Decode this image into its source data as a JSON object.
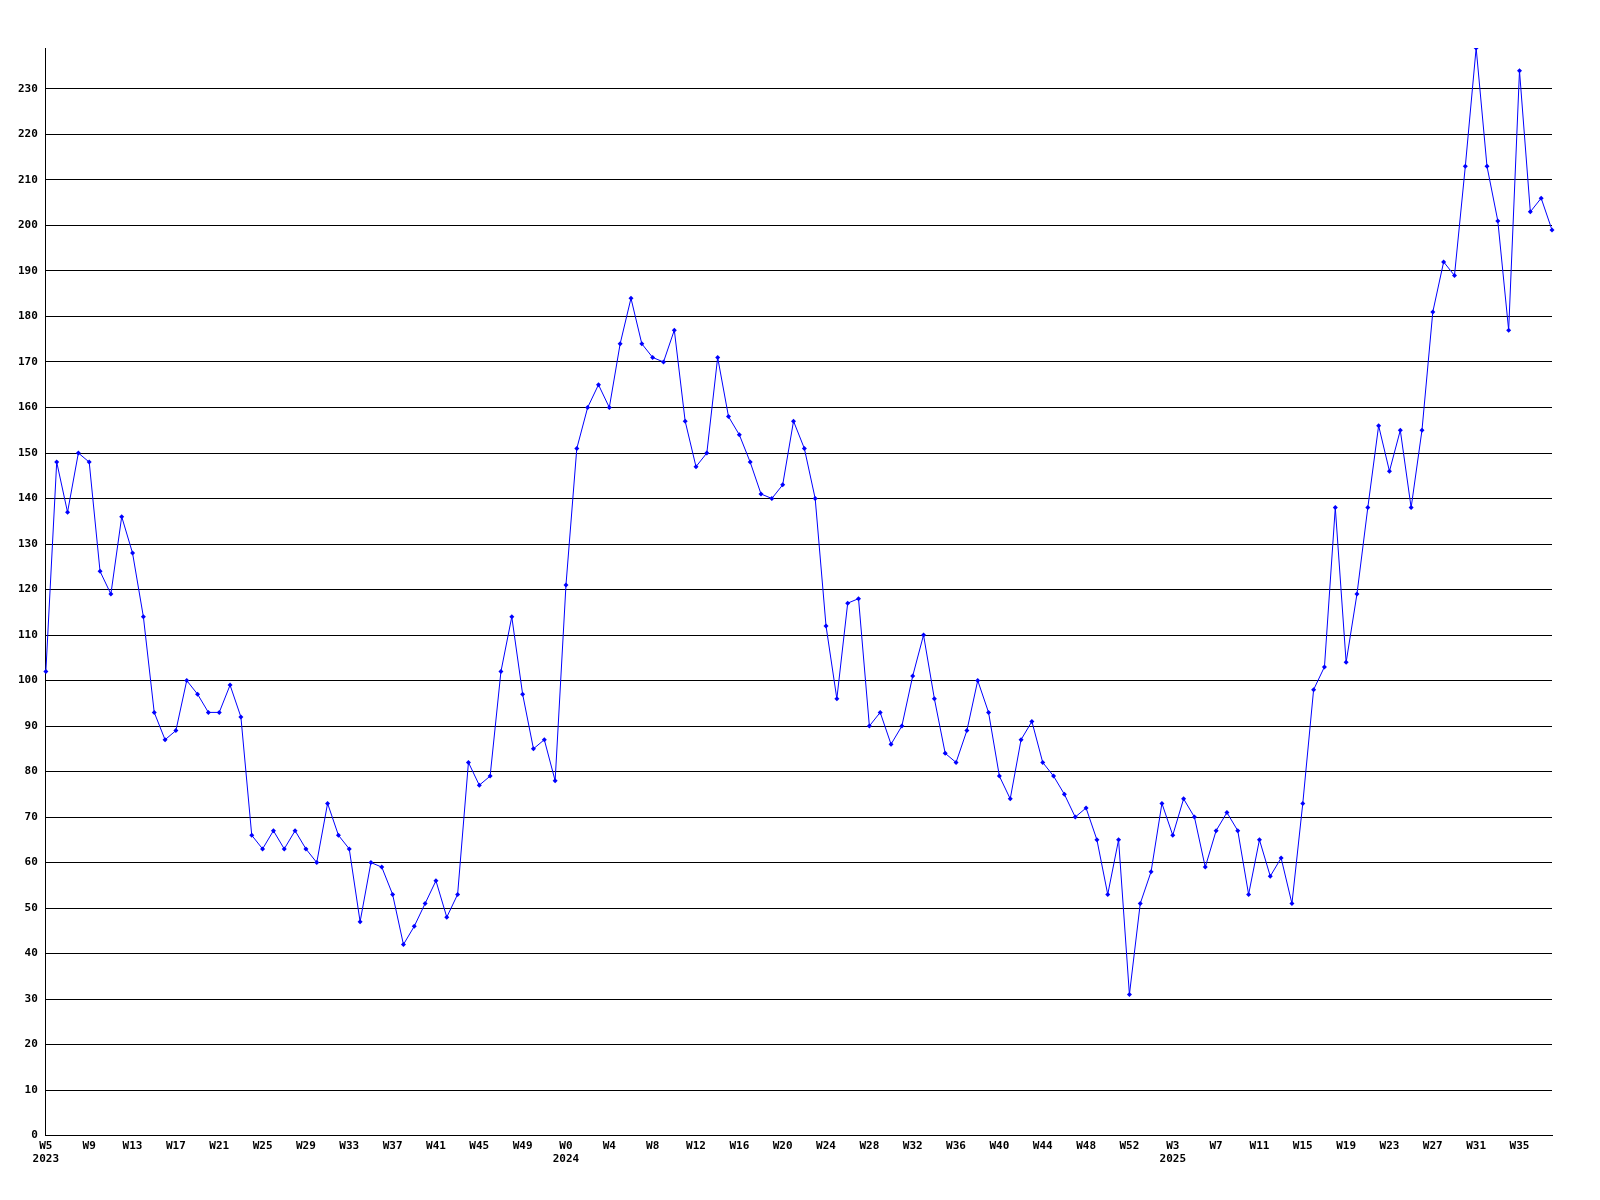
{
  "chart_data": {
    "type": "line",
    "categories": [
      "W5\n2023",
      null,
      null,
      null,
      "W9",
      null,
      null,
      null,
      "W13",
      null,
      null,
      null,
      "W17",
      null,
      null,
      null,
      "W21",
      null,
      null,
      null,
      "W25",
      null,
      null,
      null,
      "W29",
      null,
      null,
      null,
      "W33",
      null,
      null,
      null,
      "W37",
      null,
      null,
      null,
      "W41",
      null,
      null,
      null,
      "W45",
      null,
      null,
      null,
      "W49",
      null,
      null,
      null,
      "W0\n2024",
      null,
      null,
      null,
      "W4",
      null,
      null,
      null,
      "W8",
      null,
      null,
      null,
      "W12",
      null,
      null,
      null,
      "W16",
      null,
      null,
      null,
      "W20",
      null,
      null,
      null,
      "W24",
      null,
      null,
      null,
      "W28",
      null,
      null,
      null,
      "W32",
      null,
      null,
      null,
      "W36",
      null,
      null,
      null,
      "W40",
      null,
      null,
      null,
      "W44",
      null,
      null,
      null,
      "W48",
      null,
      null,
      null,
      "W52",
      null,
      null,
      null,
      "W3\n2025",
      null,
      null,
      null,
      "W7",
      null,
      null,
      null,
      "W11",
      null,
      null,
      null,
      "W15",
      null,
      null,
      null,
      "W19",
      null,
      null,
      null,
      "W23",
      null,
      null,
      null,
      "W27",
      null,
      null,
      null,
      "W31",
      null,
      null,
      null,
      "W35",
      null,
      null,
      null
    ],
    "series": [
      {
        "color": "#0000ff",
        "values": [
          102,
          148,
          137,
          150,
          148,
          124,
          119,
          136,
          128,
          114,
          93,
          87,
          89,
          100,
          97,
          93,
          93,
          99,
          92,
          66,
          63,
          67,
          63,
          67,
          63,
          60,
          73,
          66,
          63,
          47,
          60,
          59,
          53,
          42,
          46,
          51,
          56,
          48,
          53,
          82,
          77,
          79,
          102,
          114,
          97,
          85,
          87,
          78,
          121,
          151,
          160,
          165,
          160,
          174,
          184,
          174,
          171,
          170,
          177,
          157,
          147,
          150,
          171,
          158,
          154,
          148,
          141,
          140,
          143,
          157,
          151,
          140,
          112,
          96,
          117,
          118,
          90,
          93,
          86,
          90,
          101,
          110,
          96,
          84,
          82,
          89,
          100,
          93,
          79,
          74,
          87,
          91,
          82,
          79,
          75,
          70,
          72,
          65,
          53,
          65,
          31,
          51,
          58,
          73,
          66,
          74,
          70,
          59,
          67,
          71,
          67,
          53,
          65,
          57,
          61,
          51,
          73,
          98,
          103,
          138,
          104,
          119,
          138,
          156,
          146,
          155,
          138,
          155,
          181,
          192,
          189,
          213,
          239,
          213,
          201,
          177,
          234,
          203,
          206,
          199
        ]
      }
    ],
    "ylim": [
      0,
      239
    ],
    "yticks": [
      0,
      10,
      20,
      30,
      40,
      50,
      60,
      70,
      80,
      90,
      100,
      110,
      120,
      130,
      140,
      150,
      160,
      170,
      180,
      190,
      200,
      210,
      220,
      230
    ],
    "grid": "y",
    "marker": "diamond"
  }
}
